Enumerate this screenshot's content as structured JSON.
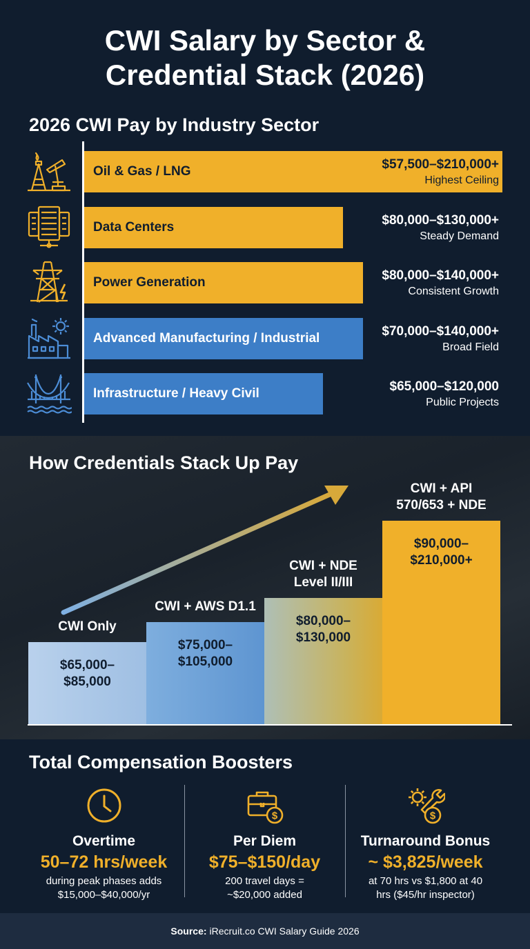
{
  "title_line1": "CWI Salary by Sector &",
  "title_line2": "Credential Stack (2026)",
  "sector_section": {
    "title": "2026 CWI Pay by Industry Sector"
  },
  "credential_section": {
    "title": "How Credentials Stack Up Pay"
  },
  "boosters_section": {
    "title": "Total Compensation Boosters"
  },
  "colors": {
    "gold": "#f0b02a",
    "blue": "#3d7ec7",
    "background": "#101d2e"
  },
  "chart_data": [
    {
      "type": "bar",
      "orientation": "horizontal",
      "title": "2026 CWI Pay by Industry Sector",
      "categories": [
        "Oil & Gas / LNG",
        "Data Centers",
        "Power Generation",
        "Advanced Manufacturing / Industrial",
        "Infrastructure / Heavy Civil"
      ],
      "range_labels": [
        "$57,500–$210,000+",
        "$80,000–$130,000+",
        "$80,000–$140,000+",
        "$70,000–$140,000+",
        "$65,000–$120,000"
      ],
      "notes": [
        "Highest Ceiling",
        "Steady Demand",
        "Consistent Growth",
        "Broad Field",
        "Public Projects"
      ],
      "values": [
        210000,
        130000,
        140000,
        140000,
        120000
      ],
      "bar_colors": [
        "#f0b02a",
        "#f0b02a",
        "#f0b02a",
        "#3d7ec7",
        "#3d7ec7"
      ],
      "icons": [
        "oil-derrick-icon",
        "server-rack-icon",
        "power-tower-icon",
        "factory-gear-icon",
        "bridge-icon"
      ],
      "xlim": [
        0,
        210000
      ],
      "grid": false
    },
    {
      "type": "bar",
      "title": "How Credentials Stack Up Pay",
      "categories": [
        "CWI Only",
        "CWI + AWS D1.1",
        "CWI + NDE Level II/III",
        "CWI + API 570/653 + NDE"
      ],
      "label_lines": [
        [
          "CWI Only"
        ],
        [
          "CWI + AWS D1.1"
        ],
        [
          "CWI + NDE",
          "Level II/III"
        ],
        [
          "CWI + API",
          "570/653 + NDE"
        ]
      ],
      "value_lines": [
        [
          "$65,000–",
          "$85,000"
        ],
        [
          "$75,000–",
          "$105,000"
        ],
        [
          "$80,000–",
          "$130,000"
        ],
        [
          "$90,000–",
          "$210,000+"
        ]
      ],
      "values": [
        85000,
        105000,
        130000,
        210000
      ],
      "bar_colors": [
        "#a9c4e4",
        "#6fa1d6",
        "#c4b989",
        "#f0b02a"
      ],
      "grid": false
    }
  ],
  "boosters": [
    {
      "icon": "clock-icon",
      "title": "Overtime",
      "value": "50–72 hrs/week",
      "desc_line1": "during peak phases adds",
      "desc_line2": "$15,000–$40,000/yr"
    },
    {
      "icon": "briefcase-dollar-icon",
      "title": "Per Diem",
      "value": "$75–$150/day",
      "desc_line1": "200 travel days =",
      "desc_line2": "~$20,000 added"
    },
    {
      "icon": "gear-wrench-dollar-icon",
      "title": "Turnaround Bonus",
      "value": "~ $3,825/week",
      "desc_line1": "at 70 hrs vs $1,800 at 40",
      "desc_line2": "hrs ($45/hr inspector)"
    }
  ],
  "footer": {
    "label": "Source:",
    "text": "iRecruit.co CWI Salary Guide 2026"
  }
}
